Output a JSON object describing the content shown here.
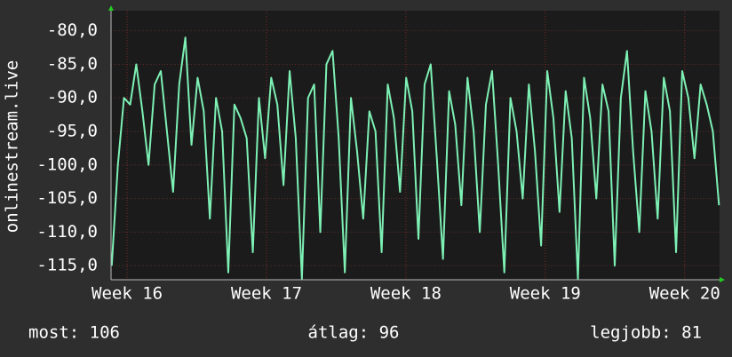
{
  "chart_data": {
    "type": "line",
    "y_label": "onlinestream.live",
    "x": [
      15.89,
      15.934,
      15.978,
      16.022,
      16.066,
      16.11,
      16.154,
      16.198,
      16.242,
      16.286,
      16.33,
      16.374,
      16.418,
      16.462,
      16.506,
      16.55,
      16.594,
      16.638,
      16.682,
      16.726,
      16.77,
      16.814,
      16.858,
      16.902,
      16.946,
      16.99,
      17.034,
      17.078,
      17.122,
      17.166,
      17.21,
      17.254,
      17.298,
      17.342,
      17.386,
      17.43,
      17.474,
      17.518,
      17.562,
      17.606,
      17.65,
      17.694,
      17.738,
      17.782,
      17.826,
      17.87,
      17.914,
      17.958,
      18.002,
      18.046,
      18.09,
      18.134,
      18.178,
      18.222,
      18.266,
      18.31,
      18.354,
      18.398,
      18.442,
      18.486,
      18.53,
      18.574,
      18.618,
      18.662,
      18.706,
      18.75,
      18.794,
      18.838,
      18.882,
      18.926,
      18.97,
      19.014,
      19.058,
      19.102,
      19.146,
      19.19,
      19.234,
      19.278,
      19.322,
      19.366,
      19.41,
      19.454,
      19.498,
      19.542,
      19.586,
      19.63,
      19.674,
      19.718,
      19.762,
      19.806,
      19.85,
      19.894,
      19.938,
      19.982,
      20.026,
      20.07,
      20.114,
      20.158,
      20.202,
      20.246
    ],
    "series": [
      {
        "color": "#7df0b4",
        "values": [
          -115,
          -100,
          -90,
          -91,
          -85,
          -92,
          -100,
          -88,
          -86,
          -95,
          -104,
          -88,
          -81,
          -97,
          -87,
          -92,
          -108,
          -90,
          -95,
          -116,
          -91,
          -93,
          -96,
          -113,
          -90,
          -99,
          -87,
          -91,
          -103,
          -86,
          -96,
          -117,
          -90,
          -88,
          -110,
          -85,
          -83,
          -96,
          -116,
          -90,
          -98,
          -108,
          -92,
          -95,
          -113,
          -88,
          -93,
          -104,
          -87,
          -92,
          -111,
          -88,
          -85,
          -99,
          -114,
          -89,
          -94,
          -106,
          -87,
          -95,
          -110,
          -91,
          -86,
          -100,
          -116,
          -90,
          -95,
          -105,
          -88,
          -98,
          -112,
          -86,
          -93,
          -107,
          -89,
          -96,
          -117,
          -87,
          -93,
          -105,
          -88,
          -92,
          -115,
          -90,
          -83,
          -98,
          -110,
          -89,
          -95,
          -108,
          -87,
          -92,
          -113,
          -86,
          -90,
          -99,
          -88,
          -91,
          -95,
          -106
        ]
      }
    ],
    "xlim": [
      15.885,
      20.25
    ],
    "xticks": [
      {
        "value": 16,
        "label": "Week 16"
      },
      {
        "value": 17,
        "label": "Week 17"
      },
      {
        "value": 18,
        "label": "Week 18"
      },
      {
        "value": 19,
        "label": "Week 19"
      },
      {
        "value": 20,
        "label": "Week 20"
      }
    ],
    "ylim": [
      -117.1,
      -77
    ],
    "yticks": [
      {
        "value": -115,
        "label": "-115,0"
      },
      {
        "value": -110,
        "label": "-110,0"
      },
      {
        "value": -105,
        "label": "-105,0"
      },
      {
        "value": -100,
        "label": "-100,0"
      },
      {
        "value": -95,
        "label": "-95,0"
      },
      {
        "value": -90,
        "label": "-90,0"
      },
      {
        "value": -85,
        "label": "-85,0"
      },
      {
        "value": -80,
        "label": "-80,0"
      }
    ],
    "grid": true,
    "footer": [
      "most: 106",
      "átlag: 96",
      "legjobb: 81"
    ]
  }
}
